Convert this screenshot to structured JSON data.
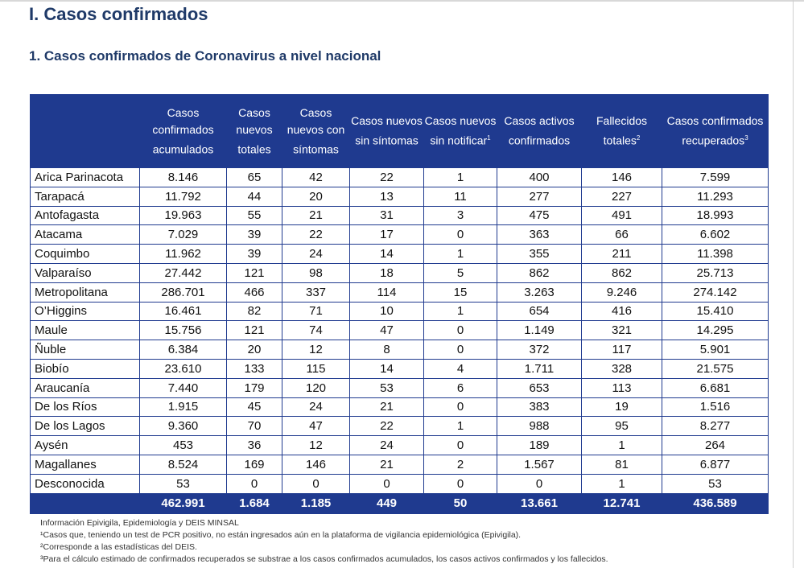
{
  "title": "I. Casos confirmados",
  "subtitle": "1. Casos confirmados de Coronavirus a nivel nacional",
  "columns": [
    {
      "text": "Casos confirmados acumulados",
      "sup": ""
    },
    {
      "text": "Casos nuevos totales",
      "sup": ""
    },
    {
      "text": "Casos nuevos con síntomas",
      "sup": ""
    },
    {
      "text": "Casos nuevos sin síntomas",
      "sup": ""
    },
    {
      "text": "Casos nuevos sin notificar",
      "sup": "1"
    },
    {
      "text": "Casos activos confirmados",
      "sup": ""
    },
    {
      "text": "Fallecidos totales",
      "sup": "2"
    },
    {
      "text": "Casos confirmados recuperados",
      "sup": "3"
    }
  ],
  "rows": [
    [
      "Arica Parinacota",
      "8.146",
      "65",
      "42",
      "22",
      "1",
      "400",
      "146",
      "7.599"
    ],
    [
      "Tarapacá",
      "11.792",
      "44",
      "20",
      "13",
      "11",
      "277",
      "227",
      "11.293"
    ],
    [
      "Antofagasta",
      "19.963",
      "55",
      "21",
      "31",
      "3",
      "475",
      "491",
      "18.993"
    ],
    [
      "Atacama",
      "7.029",
      "39",
      "22",
      "17",
      "0",
      "363",
      "66",
      "6.602"
    ],
    [
      "Coquimbo",
      "11.962",
      "39",
      "24",
      "14",
      "1",
      "355",
      "211",
      "11.398"
    ],
    [
      "Valparaíso",
      "27.442",
      "121",
      "98",
      "18",
      "5",
      "862",
      "862",
      "25.713"
    ],
    [
      "Metropolitana",
      "286.701",
      "466",
      "337",
      "114",
      "15",
      "3.263",
      "9.246",
      "274.142"
    ],
    [
      "O’Higgins",
      "16.461",
      "82",
      "71",
      "10",
      "1",
      "654",
      "416",
      "15.410"
    ],
    [
      "Maule",
      "15.756",
      "121",
      "74",
      "47",
      "0",
      "1.149",
      "321",
      "14.295"
    ],
    [
      "Ñuble",
      "6.384",
      "20",
      "12",
      "8",
      "0",
      "372",
      "117",
      "5.901"
    ],
    [
      "Biobío",
      "23.610",
      "133",
      "115",
      "14",
      "4",
      "1.711",
      "328",
      "21.575"
    ],
    [
      "Araucanía",
      "7.440",
      "179",
      "120",
      "53",
      "6",
      "653",
      "113",
      "6.681"
    ],
    [
      "De los Ríos",
      "1.915",
      "45",
      "24",
      "21",
      "0",
      "383",
      "19",
      "1.516"
    ],
    [
      "De los Lagos",
      "9.360",
      "70",
      "47",
      "22",
      "1",
      "988",
      "95",
      "8.277"
    ],
    [
      "Aysén",
      "453",
      "36",
      "12",
      "24",
      "0",
      "189",
      "1",
      "264"
    ],
    [
      "Magallanes",
      "8.524",
      "169",
      "146",
      "21",
      "2",
      "1.567",
      "81",
      "6.877"
    ],
    [
      "Desconocida",
      "53",
      "0",
      "0",
      "0",
      "0",
      "0",
      "1",
      "53"
    ]
  ],
  "totals": [
    "",
    "462.991",
    "1.684",
    "1.185",
    "449",
    "50",
    "13.661",
    "12.741",
    "436.589"
  ],
  "footnotes": [
    "Información Epivigila, Epidemiología y DEIS MINSAL",
    "¹Casos que, teniendo un test de PCR positivo, no están ingresados aún en la plataforma de vigilancia epidemiológica (Epivigila).",
    "²Corresponde a las estadísticas del DEIS.",
    "³Para el cálculo estimado de confirmados recuperados se substrae a los casos confirmados acumulados, los casos activos confirmados y los fallecidos."
  ]
}
